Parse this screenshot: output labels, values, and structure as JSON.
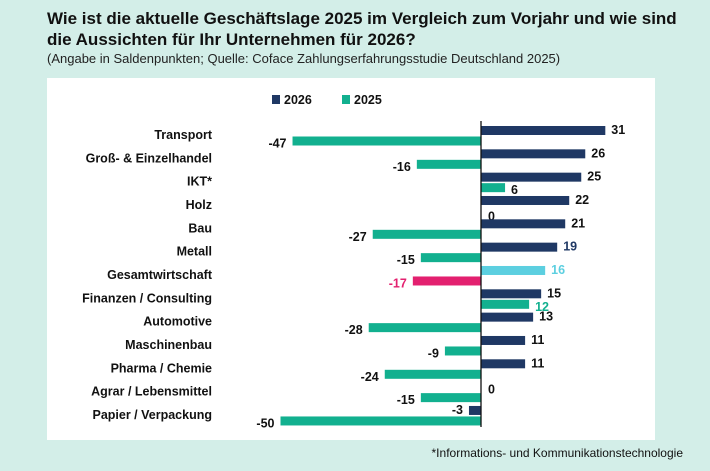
{
  "chart_data": {
    "type": "bar",
    "orientation": "horizontal",
    "title": "Wie ist die aktuelle Geschäftslage 2025 im Vergleich zum Vorjahr und wie sind die Aussichten für Ihr Unternehmen für 2026?",
    "subtitle": "(Angabe in Saldenpunkten; Quelle: Coface Zahlungserfahrungsstudie Deutschland 2025)",
    "footnote": "*Informations- und Kommunikationstechnologie",
    "legend_position": "top",
    "grid": false,
    "xlim": [
      -50,
      31
    ],
    "categories": [
      "Transport",
      "Groß- & Einzelhandel",
      "IKT*",
      "Holz",
      "Bau",
      "Metall",
      "Gesamtwirtschaft",
      "Finanzen / Consulting",
      "Automotive",
      "Maschinenbau",
      "Pharma / Chemie",
      "Agrar / Lebensmittel",
      "Papier / Verpackung"
    ],
    "series": [
      {
        "name": "2026",
        "color": "#1f3864",
        "values": [
          31,
          26,
          25,
          22,
          21,
          19,
          16,
          15,
          13,
          11,
          11,
          0,
          -3
        ]
      },
      {
        "name": "2025",
        "color": "#12b08f",
        "values": [
          -47,
          -16,
          6,
          0,
          -27,
          -15,
          -17,
          12,
          -28,
          -9,
          -24,
          -15,
          -50
        ]
      }
    ],
    "highlights": {
      "Gesamtwirtschaft": {
        "2026": "#5ccfe0",
        "2025": "#e3206f"
      },
      "Metall": {
        "2026_label": "#1f3864"
      },
      "Finanzen / Consulting": {
        "2025_label": "#12b08f"
      }
    }
  }
}
